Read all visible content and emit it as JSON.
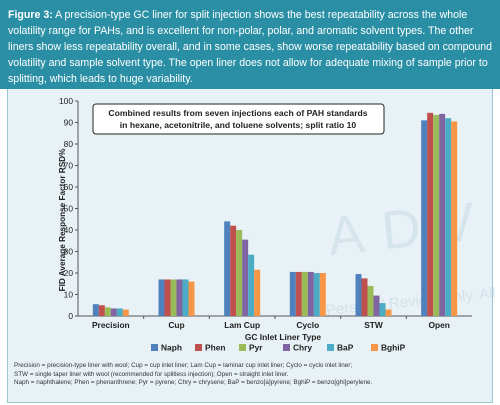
{
  "caption": {
    "label": "Figure 3:",
    "text": "A precision-type GC liner for split injection shows the best repeatability across the whole volatility range for PAHs, and is excellent for non-polar, polar, and aromatic solvent types. The other liners show less repeatability overall, and in some cases, show worse repeatability based on compound volatility and sample solvent type. The open liner does not allow for adequate mixing of sample prior to splitting, which leads to huge variability."
  },
  "chart_data": {
    "type": "bar",
    "title": "",
    "annotation": [
      "Combined results from seven injections each of PAH standards",
      "in hexane, acetonitrile, and toluene solvents; split ratio 10"
    ],
    "xlabel": "GC Inlet Liner Type",
    "ylabel": "FID Average Response Factor RSD%",
    "ylim": [
      0,
      100
    ],
    "yticks": [
      0,
      10,
      20,
      30,
      40,
      50,
      60,
      70,
      80,
      90,
      100
    ],
    "grid": false,
    "legend_position": "bottom",
    "categories": [
      "Precision",
      "Cup",
      "Lam Cup",
      "Cyclo",
      "STW",
      "Open"
    ],
    "series": [
      {
        "name": "Naph",
        "color": "#4f81bd",
        "values": [
          5.5,
          17,
          44,
          20.5,
          19.5,
          91
        ]
      },
      {
        "name": "Phen",
        "color": "#c0504d",
        "values": [
          5,
          17,
          42,
          20.5,
          17.5,
          94.5
        ]
      },
      {
        "name": "Pyr",
        "color": "#9bbb59",
        "values": [
          4,
          17,
          40,
          20.5,
          14,
          93.5
        ]
      },
      {
        "name": "Chry",
        "color": "#8064a2",
        "values": [
          3.5,
          17,
          35.5,
          20.5,
          9.5,
          94
        ]
      },
      {
        "name": "BaP",
        "color": "#4bacc6",
        "values": [
          3.5,
          17,
          28.5,
          20,
          6,
          92
        ]
      },
      {
        "name": "BghiP",
        "color": "#f79646",
        "values": [
          3,
          16,
          21.5,
          20,
          3,
          90.5
        ]
      }
    ]
  },
  "watermark": {
    "line1": "For Personal Review Only. All Rights Reserved",
    "brand": "ADV"
  },
  "footnote": [
    "Precision = precision-type liner with wool; Cup = cup inlet liner; Lam Cup = laminar cup inlet liner; Cyclo = cyclo inlet liner;",
    "STW = single taper liner with wool (recommended for splitless injection); Open = straight inlet liner.",
    "Naph = naphthalene; Phen = phenanthrene; Pyr = pyrene; Chry = chrysene; BaP = benzo[a]pyrene; BghiP = benzo[ghi]perylene."
  ]
}
